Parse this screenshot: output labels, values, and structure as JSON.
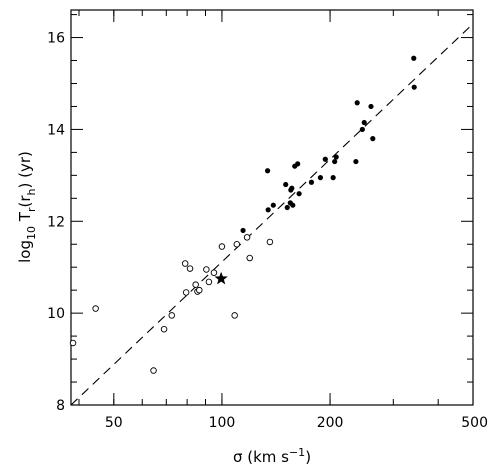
{
  "chart_data": {
    "type": "scatter",
    "xscale": "log",
    "xlim": [
      38,
      500
    ],
    "ylim": [
      8,
      16.6
    ],
    "x_ticks": [
      50,
      100,
      200,
      500
    ],
    "x_tick_labels": [
      "50",
      "100",
      "200",
      "500"
    ],
    "y_ticks": [
      8,
      10,
      12,
      14,
      16
    ],
    "y_tick_labels": [
      "8",
      "10",
      "12",
      "14",
      "16"
    ],
    "grid": false,
    "legend": "none",
    "series": [
      {
        "marker": "open-circle",
        "points": [
          [
            38.5,
            9.35
          ],
          [
            44.5,
            10.1
          ],
          [
            64.5,
            8.75
          ],
          [
            69,
            9.65
          ],
          [
            72.5,
            9.95
          ],
          [
            79,
            11.08
          ],
          [
            79.5,
            10.45
          ],
          [
            81.5,
            10.97
          ],
          [
            84.5,
            10.62
          ],
          [
            85.5,
            10.47
          ],
          [
            86.5,
            10.5
          ],
          [
            90.5,
            10.95
          ],
          [
            92,
            10.68
          ],
          [
            95,
            10.88
          ],
          [
            100,
            11.45
          ],
          [
            108.5,
            9.95
          ],
          [
            110,
            11.5
          ],
          [
            117.5,
            11.65
          ],
          [
            119.5,
            11.2
          ],
          [
            136,
            11.55
          ]
        ]
      },
      {
        "marker": "filled-circle",
        "points": [
          [
            114.5,
            11.8
          ],
          [
            134,
            13.1
          ],
          [
            134.5,
            12.25
          ],
          [
            139,
            12.35
          ],
          [
            150.5,
            12.8
          ],
          [
            152,
            12.3
          ],
          [
            155,
            12.4
          ],
          [
            155.5,
            12.68
          ],
          [
            156.5,
            12.72
          ],
          [
            157.5,
            12.35
          ],
          [
            159.5,
            13.2
          ],
          [
            162.5,
            13.25
          ],
          [
            164,
            12.6
          ],
          [
            177.5,
            12.85
          ],
          [
            188,
            12.95
          ],
          [
            194,
            13.35
          ],
          [
            204,
            12.95
          ],
          [
            206,
            13.3
          ],
          [
            208,
            13.4
          ],
          [
            236,
            13.3
          ],
          [
            238,
            14.58
          ],
          [
            246,
            14.0
          ],
          [
            249,
            14.15
          ],
          [
            260,
            14.5
          ],
          [
            263,
            13.8
          ],
          [
            342,
            15.55
          ],
          [
            343,
            14.92
          ]
        ]
      },
      {
        "marker": "star",
        "points": [
          [
            99.5,
            10.75
          ]
        ]
      }
    ],
    "fit_line": {
      "style": "dashed",
      "points": [
        [
          38,
          8
        ],
        [
          500,
          16.3
        ]
      ]
    }
  }
}
